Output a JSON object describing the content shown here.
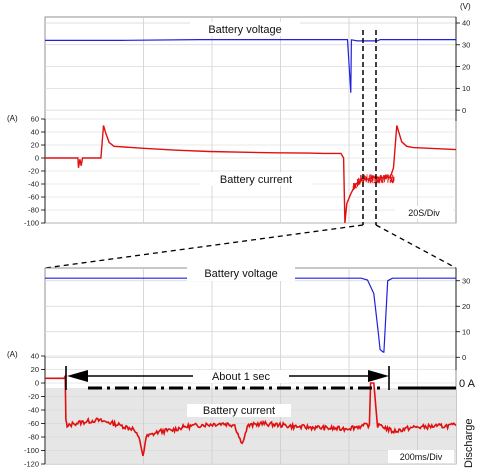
{
  "chart_data": [
    {
      "type": "line",
      "title": "",
      "timebase": "20S/Div",
      "voltage_axis": {
        "unit": "(V)",
        "range": [
          -5,
          40
        ],
        "ticks": [
          0,
          10,
          20,
          30,
          40
        ]
      },
      "current_axis": {
        "unit": "(A)",
        "range": [
          -100,
          60
        ],
        "ticks": [
          60,
          40,
          20,
          0,
          -20,
          -40,
          -60,
          -80,
          -100
        ]
      },
      "series": [
        {
          "name": "Battery voltage",
          "color": "#2020e0",
          "axis": "voltage",
          "x": [
            0,
            2.3,
            4.7,
            8.9,
            9.2,
            9.3,
            9.32,
            9.5,
            10.1,
            10.2,
            12.5
          ],
          "y": [
            32,
            32,
            32.4,
            32.4,
            32.4,
            8,
            32.3,
            31.8,
            31.8,
            32.4,
            32.4
          ]
        },
        {
          "name": "Battery current",
          "color": "#e01010",
          "axis": "current",
          "x": [
            0,
            1.0,
            1.02,
            1.06,
            1.1,
            1.14,
            1.2,
            1.7,
            1.78,
            1.85,
            1.95,
            2.1,
            3,
            4,
            5,
            6,
            7,
            8,
            8.5,
            9.0,
            9.08,
            9.12,
            9.18,
            9.3,
            9.45,
            9.6,
            10.0,
            10.5,
            10.6,
            10.7,
            10.85,
            11.0,
            11.2,
            12.5
          ],
          "y": [
            0,
            0,
            -15,
            -2,
            -12,
            0,
            0,
            0,
            50,
            38,
            24,
            18,
            15,
            12,
            10,
            9,
            8,
            7.5,
            7,
            7,
            0,
            -100,
            -70,
            -55,
            -40,
            -35,
            -30,
            -30,
            -15,
            50,
            25,
            18,
            16,
            13
          ]
        }
      ]
    },
    {
      "type": "line",
      "title": "",
      "timebase": "200ms/Div",
      "voltage_axis": {
        "unit": "(V)",
        "range": [
          -5,
          35
        ],
        "ticks": [
          0,
          10,
          20,
          30
        ]
      },
      "current_axis": {
        "unit": "(A)",
        "range": [
          -120,
          40
        ],
        "ticks": [
          40,
          20,
          0,
          -20,
          -40,
          -60,
          -80,
          -100,
          -120
        ]
      },
      "zero_label": "0 A",
      "discharge_label": "Discharge",
      "annotation": "About 1 sec",
      "series": [
        {
          "name": "Battery voltage",
          "color": "#2020e0",
          "axis": "voltage",
          "x": [
            0,
            1.0,
            3.0,
            4.97,
            5.0,
            5.1,
            5.2,
            5.27,
            5.3,
            5.35,
            5.36,
            5.42,
            5.48,
            5.5,
            6.5
          ],
          "y": [
            31,
            31,
            31,
            31,
            31,
            30.3,
            25,
            10,
            3,
            2,
            2,
            30,
            30.8,
            31,
            31
          ]
        },
        {
          "name": "Battery current",
          "color": "#e01010",
          "axis": "current",
          "x": [
            0,
            0.3,
            0.32,
            0.33,
            0.35,
            0.45,
            0.8,
            1.0,
            1.2,
            1.4,
            1.5,
            1.55,
            1.6,
            1.8,
            2.0,
            2.2,
            2.5,
            2.8,
            3.0,
            3.1,
            3.15,
            3.2,
            3.4,
            3.7,
            4.0,
            4.3,
            4.7,
            5.0,
            5.13,
            5.15,
            5.2,
            5.26,
            5.3,
            5.5,
            5.8,
            6.2,
            6.5
          ],
          "y": [
            7,
            7,
            10,
            -55,
            -65,
            -60,
            -55,
            -58,
            -63,
            -68,
            -85,
            -108,
            -80,
            -72,
            -70,
            -65,
            -62,
            -60,
            -62,
            -88,
            -82,
            -64,
            -60,
            -62,
            -65,
            -66,
            -68,
            -64,
            -62,
            0,
            0,
            -66,
            -62,
            -72,
            -66,
            -64,
            -63
          ]
        }
      ]
    }
  ]
}
